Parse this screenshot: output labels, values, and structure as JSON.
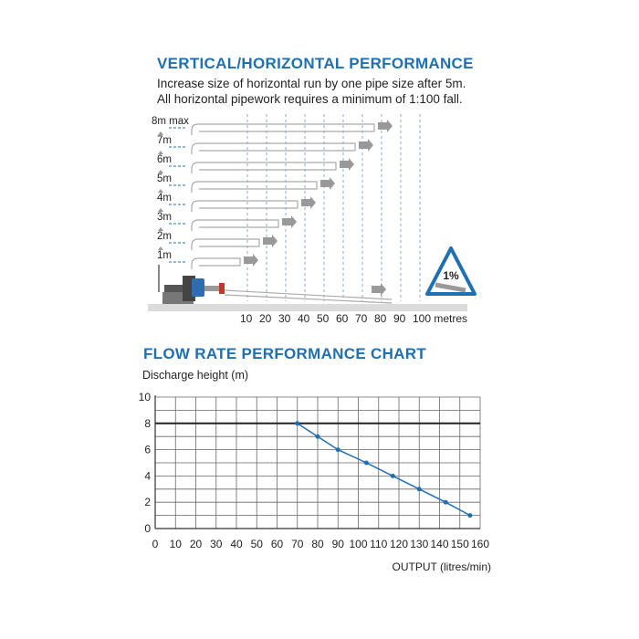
{
  "section1": {
    "title": "VERTICAL/HORIZONTAL PERFORMANCE",
    "line1": "Increase size of horizontal run by one pipe size after 5m.",
    "line2": "All horizontal pipework requires a minimum of 1:100 fall.",
    "height_labels": [
      "8m max",
      "7m",
      "6m",
      "5m",
      "4m",
      "3m",
      "2m",
      "1m"
    ],
    "distance_labels": [
      "10",
      "20",
      "30",
      "40",
      "50",
      "60",
      "70",
      "80",
      "90",
      "100 metres"
    ],
    "fall_badge": "1%"
  },
  "section2": {
    "title": "FLOW RATE PERFORMANCE CHART"
  },
  "chart_data": {
    "type": "line",
    "title": "FLOW RATE PERFORMANCE CHART",
    "ylabel": "Discharge height (m)",
    "xlabel": "OUTPUT (litres/min)",
    "xlim": [
      0,
      160
    ],
    "ylim": [
      0,
      10
    ],
    "x_ticks": [
      0,
      10,
      20,
      30,
      40,
      50,
      60,
      70,
      80,
      90,
      100,
      110,
      120,
      130,
      140,
      150,
      160
    ],
    "x_tick_labels": [
      "0",
      "10",
      "20",
      "30",
      "40",
      "50",
      "60",
      "70",
      "80",
      "90",
      "100",
      "110",
      "120",
      "130",
      "140",
      "150",
      "160"
    ],
    "y_ticks": [
      0,
      2,
      4,
      6,
      8,
      10
    ],
    "y_tick_labels": [
      "0",
      "2",
      "4",
      "6",
      "8",
      "10"
    ],
    "max_height_line": 8,
    "grid": true,
    "series": [
      {
        "x": [
          70,
          80,
          90,
          104,
          117,
          130,
          143,
          155
        ],
        "y": [
          8,
          7,
          6,
          5,
          4,
          3,
          2,
          1
        ],
        "color": "#1f6fb3"
      }
    ]
  }
}
